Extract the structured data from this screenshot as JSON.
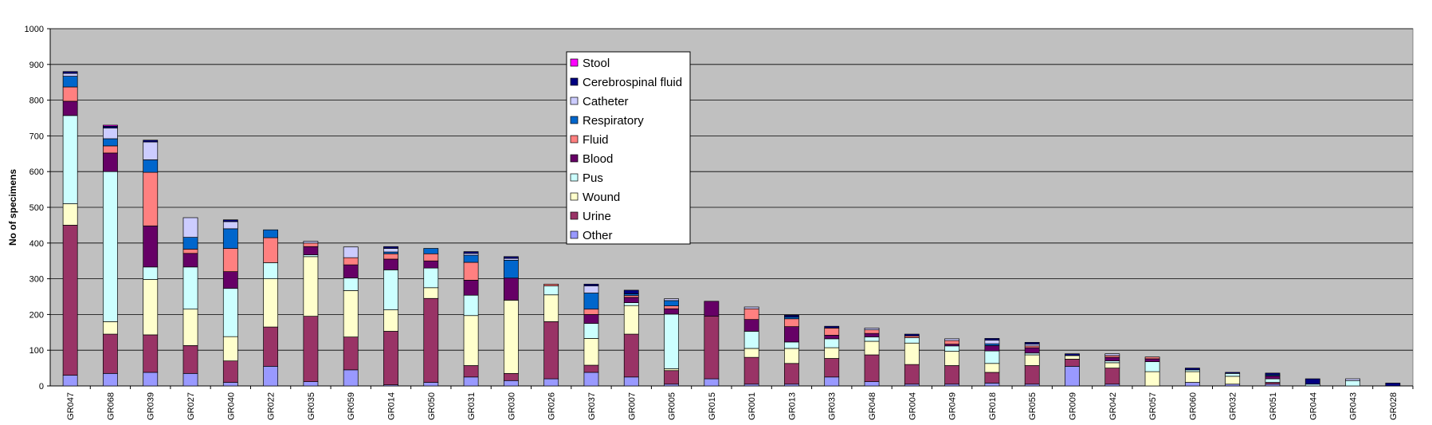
{
  "chart_data": {
    "type": "bar",
    "stacked": true,
    "title": "",
    "xlabel": "",
    "ylabel": "No of specimens",
    "ylim": [
      0,
      1000
    ],
    "yticks": [
      0,
      100,
      200,
      300,
      400,
      500,
      600,
      700,
      800,
      900,
      1000
    ],
    "grid": true,
    "legend_position": "top-center",
    "plot_background": "#c0c0c0",
    "categories": [
      "GR047",
      "GR068",
      "GR039",
      "GR027",
      "GR040",
      "GR022",
      "GR035",
      "GR059",
      "GR014",
      "GR050",
      "GR031",
      "GR030",
      "GR026",
      "GR037",
      "GR007",
      "GR005",
      "GR015",
      "GR001",
      "GR013",
      "GR033",
      "GR048",
      "GR004",
      "GR049",
      "GR018",
      "GR055",
      "GR009",
      "GR042",
      "GR057",
      "GR060",
      "GR032",
      "GR051",
      "GR044",
      "GR043",
      "GR028"
    ],
    "series": [
      {
        "name": "Other",
        "color": "#9999ff",
        "values": [
          30,
          35,
          38,
          35,
          10,
          55,
          12,
          45,
          3,
          10,
          25,
          15,
          20,
          38,
          25,
          5,
          20,
          5,
          5,
          25,
          12,
          5,
          5,
          8,
          5,
          55,
          5,
          0,
          10,
          5,
          5,
          0,
          0,
          0
        ]
      },
      {
        "name": "Urine",
        "color": "#993366",
        "values": [
          420,
          110,
          105,
          78,
          60,
          110,
          183,
          92,
          150,
          235,
          32,
          20,
          160,
          20,
          120,
          38,
          175,
          75,
          58,
          52,
          75,
          55,
          52,
          30,
          52,
          20,
          45,
          0,
          0,
          0,
          5,
          0,
          0,
          0
        ]
      },
      {
        "name": "Wound",
        "color": "#ffffcc",
        "values": [
          60,
          35,
          155,
          102,
          68,
          135,
          167,
          130,
          60,
          30,
          140,
          205,
          75,
          75,
          80,
          5,
          0,
          25,
          42,
          30,
          38,
          60,
          40,
          25,
          30,
          10,
          15,
          40,
          30,
          22,
          0,
          0,
          0,
          0
        ]
      },
      {
        "name": "Pus",
        "color": "#ccffff",
        "values": [
          247,
          420,
          35,
          118,
          135,
          45,
          5,
          35,
          112,
          55,
          57,
          0,
          25,
          42,
          8,
          153,
          0,
          48,
          18,
          25,
          12,
          15,
          15,
          35,
          5,
          0,
          5,
          28,
          5,
          8,
          10,
          5,
          15,
          0
        ]
      },
      {
        "name": "Blood",
        "color": "#660066",
        "values": [
          40,
          52,
          115,
          38,
          47,
          0,
          23,
          37,
          30,
          20,
          42,
          62,
          0,
          25,
          15,
          15,
          42,
          33,
          43,
          10,
          10,
          0,
          5,
          15,
          15,
          0,
          10,
          8,
          0,
          0,
          8,
          0,
          0,
          0
        ]
      },
      {
        "name": "Fluid",
        "color": "#ff8080",
        "values": [
          40,
          20,
          150,
          12,
          65,
          70,
          10,
          20,
          15,
          20,
          50,
          0,
          5,
          15,
          5,
          8,
          0,
          30,
          22,
          20,
          10,
          5,
          10,
          0,
          5,
          0,
          5,
          5,
          0,
          0,
          0,
          0,
          0,
          0
        ]
      },
      {
        "name": "Respiratory",
        "color": "#0066cc",
        "values": [
          30,
          20,
          35,
          33,
          55,
          22,
          0,
          0,
          5,
          15,
          20,
          50,
          0,
          45,
          5,
          15,
          0,
          0,
          5,
          0,
          0,
          0,
          0,
          5,
          0,
          0,
          0,
          0,
          0,
          0,
          3,
          0,
          0,
          0
        ]
      },
      {
        "name": "Catheter",
        "color": "#ccccff",
        "values": [
          8,
          30,
          50,
          55,
          20,
          0,
          5,
          30,
          10,
          0,
          5,
          5,
          0,
          20,
          0,
          5,
          0,
          5,
          0,
          0,
          5,
          0,
          5,
          10,
          5,
          0,
          5,
          0,
          0,
          0,
          0,
          0,
          5,
          0
        ]
      },
      {
        "name": "Cerebrospinal fluid",
        "color": "#000080",
        "values": [
          5,
          5,
          5,
          0,
          5,
          0,
          0,
          0,
          5,
          0,
          5,
          5,
          0,
          5,
          10,
          0,
          0,
          0,
          5,
          5,
          0,
          5,
          0,
          5,
          5,
          5,
          0,
          0,
          5,
          3,
          5,
          15,
          0,
          8
        ]
      },
      {
        "name": "Stool",
        "color": "#ff00ff",
        "values": [
          0,
          3,
          0,
          0,
          0,
          0,
          0,
          0,
          0,
          0,
          0,
          0,
          0,
          0,
          0,
          0,
          0,
          0,
          0,
          0,
          0,
          0,
          0,
          0,
          0,
          0,
          0,
          0,
          0,
          0,
          0,
          0,
          0,
          0
        ]
      }
    ],
    "legend_order": [
      "Stool",
      "Cerebrospinal fluid",
      "Catheter",
      "Respiratory",
      "Fluid",
      "Blood",
      "Pus",
      "Wound",
      "Urine",
      "Other"
    ]
  }
}
